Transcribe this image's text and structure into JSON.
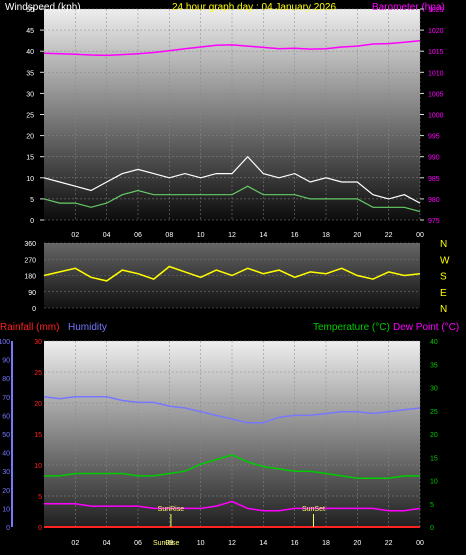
{
  "header": {
    "left_label": "Windspeed (kph)",
    "title": "24 hour graph day : 04 January 2026",
    "right_label": "Barometer (hpa)"
  },
  "colors": {
    "windspeed": "#ffffff",
    "wind_avg": "#66cc66",
    "barometer": "#ff00ff",
    "wind_direction": "#ffff00",
    "rainfall": "#ff2222",
    "humidity": "#7777ff",
    "temperature": "#00cc00",
    "dew_point": "#ff00ff",
    "sun_markers": "#ffff66"
  },
  "chart_data": [
    {
      "type": "line",
      "x_ticks": [
        "02",
        "04",
        "06",
        "08",
        "10",
        "12",
        "14",
        "16",
        "18",
        "20",
        "22",
        "00"
      ],
      "y_left_ticks": [
        "0",
        "5",
        "10",
        "15",
        "20",
        "25",
        "30",
        "35",
        "40",
        "45",
        "50"
      ],
      "y_left_range": [
        0,
        50
      ],
      "y_right_ticks": [
        "975",
        "980",
        "985",
        "990",
        "995",
        "1000",
        "1005",
        "1010",
        "1015",
        "1020",
        "1025"
      ],
      "y_right_range": [
        975,
        1025
      ],
      "series": [
        {
          "name": "Windspeed (kph)",
          "axis": "left",
          "hours": [
            0,
            1,
            2,
            3,
            4,
            5,
            6,
            7,
            8,
            9,
            10,
            11,
            12,
            13,
            14,
            15,
            16,
            17,
            18,
            19,
            20,
            21,
            22,
            23,
            24
          ],
          "values": [
            10,
            9,
            8,
            7,
            9,
            11,
            12,
            11,
            10,
            11,
            10,
            11,
            11,
            15,
            11,
            10,
            11,
            9,
            10,
            9,
            9,
            6,
            5,
            6,
            4
          ]
        },
        {
          "name": "Wind average",
          "axis": "left",
          "hours": [
            0,
            1,
            2,
            3,
            4,
            5,
            6,
            7,
            8,
            9,
            10,
            11,
            12,
            13,
            14,
            15,
            16,
            17,
            18,
            19,
            20,
            21,
            22,
            23,
            24
          ],
          "values": [
            5,
            4,
            4,
            3,
            4,
            6,
            7,
            6,
            6,
            6,
            6,
            6,
            6,
            8,
            6,
            6,
            6,
            5,
            5,
            5,
            5,
            3,
            3,
            3,
            2
          ]
        },
        {
          "name": "Barometer (hpa)",
          "axis": "right",
          "hours": [
            0,
            1,
            2,
            3,
            4,
            5,
            6,
            7,
            8,
            9,
            10,
            11,
            12,
            13,
            14,
            15,
            16,
            17,
            18,
            19,
            20,
            21,
            22,
            23,
            24
          ],
          "values": [
            1014.5,
            1014.4,
            1014.3,
            1014.1,
            1014.0,
            1014.2,
            1014.4,
            1014.7,
            1015.1,
            1015.6,
            1016.0,
            1016.4,
            1016.5,
            1016.2,
            1015.9,
            1015.6,
            1015.7,
            1015.5,
            1015.6,
            1016.0,
            1016.2,
            1016.7,
            1016.8,
            1017.1,
            1017.5
          ]
        }
      ]
    },
    {
      "type": "line",
      "x_ticks": [],
      "y_left_ticks": [
        "0",
        "90",
        "180",
        "270",
        "360"
      ],
      "y_left_range": [
        0,
        360
      ],
      "compass_ticks": [
        "N",
        "W",
        "S",
        "E",
        "N"
      ],
      "series": [
        {
          "name": "Wind direction",
          "axis": "left",
          "hours": [
            0,
            1,
            2,
            3,
            4,
            5,
            6,
            7,
            8,
            9,
            10,
            11,
            12,
            13,
            14,
            15,
            16,
            17,
            18,
            19,
            20,
            21,
            22,
            23,
            24
          ],
          "values": [
            180,
            200,
            220,
            170,
            150,
            210,
            190,
            160,
            230,
            200,
            170,
            210,
            180,
            220,
            190,
            210,
            170,
            200,
            190,
            220,
            180,
            160,
            200,
            180,
            190
          ]
        }
      ]
    },
    {
      "type": "line",
      "header_labels": [
        "Rainfall (mm)",
        "Humidity",
        "Temperature (°C)",
        "Dew Point (°C)"
      ],
      "x_ticks": [
        "02",
        "04",
        "06",
        "08",
        "10",
        "12",
        "14",
        "16",
        "18",
        "20",
        "22",
        "00"
      ],
      "y_left_ticks": [
        "0",
        "10",
        "20",
        "30",
        "40",
        "50",
        "60",
        "70",
        "80",
        "90",
        "100"
      ],
      "y_left_range": [
        0,
        100
      ],
      "y_rain_ticks": [
        "0",
        "5",
        "10",
        "15",
        "20",
        "25",
        "30"
      ],
      "y_rain_range": [
        0,
        30
      ],
      "y_right_ticks": [
        "0",
        "5",
        "10",
        "15",
        "20",
        "25",
        "30",
        "35",
        "40"
      ],
      "y_right_range": [
        0,
        40
      ],
      "annotations": [
        "SunRise",
        "SunSet",
        "SunRise"
      ],
      "series": [
        {
          "name": "Humidity",
          "axis": "left",
          "hours": [
            0,
            1,
            2,
            3,
            4,
            5,
            6,
            7,
            8,
            9,
            10,
            11,
            12,
            13,
            14,
            15,
            16,
            17,
            18,
            19,
            20,
            21,
            22,
            23,
            24
          ],
          "values": [
            70,
            69,
            70,
            70,
            70,
            68,
            67,
            67,
            65,
            64,
            62,
            60,
            58,
            56,
            56,
            59,
            60,
            60,
            61,
            62,
            62,
            61,
            62,
            63,
            64
          ]
        },
        {
          "name": "Temperature (°C)",
          "axis": "right",
          "hours": [
            0,
            1,
            2,
            3,
            4,
            5,
            6,
            7,
            8,
            9,
            10,
            11,
            12,
            13,
            14,
            15,
            16,
            17,
            18,
            19,
            20,
            21,
            22,
            23,
            24
          ],
          "values": [
            11,
            11,
            11.5,
            11.5,
            11.5,
            11.5,
            11,
            11,
            11.5,
            12,
            13.5,
            14.5,
            15.5,
            14,
            13,
            12.5,
            12,
            12,
            11.5,
            11,
            10.5,
            10.5,
            10.5,
            11,
            11
          ]
        },
        {
          "name": "Dew Point (°C)",
          "axis": "right",
          "hours": [
            0,
            1,
            2,
            3,
            4,
            5,
            6,
            7,
            8,
            9,
            10,
            11,
            12,
            13,
            14,
            15,
            16,
            17,
            18,
            19,
            20,
            21,
            22,
            23,
            24
          ],
          "values": [
            5,
            5,
            5,
            4.5,
            4.5,
            4.5,
            4.5,
            4,
            4,
            4,
            4,
            4.5,
            5.5,
            4,
            3.5,
            3.5,
            4,
            4,
            4,
            4,
            4,
            4,
            3.5,
            3.5,
            4
          ]
        },
        {
          "name": "Rainfall (mm)",
          "axis": "rain",
          "hours": [
            0,
            24
          ],
          "values": [
            0,
            0
          ]
        }
      ]
    }
  ]
}
